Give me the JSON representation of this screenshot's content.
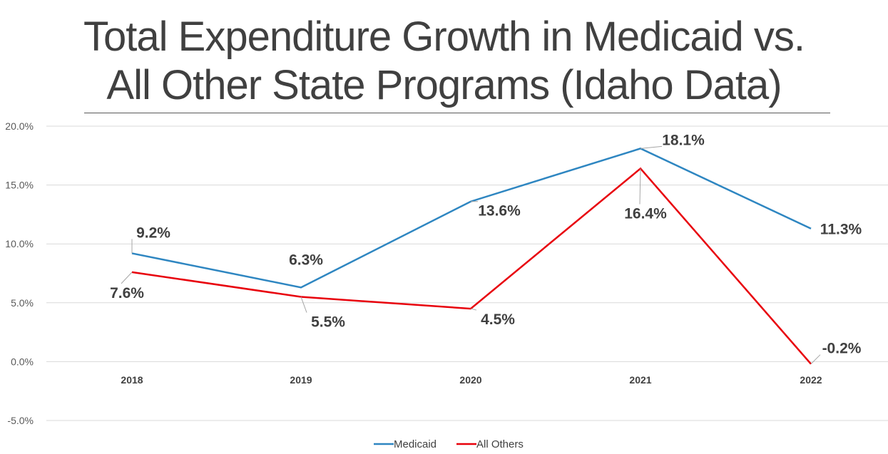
{
  "title_line1": "Total Expenditure Growth in Medicaid vs.",
  "title_line2": "All Other State Programs (Idaho Data)",
  "chart_data": {
    "type": "line",
    "title": "Total Expenditure Growth in Medicaid vs. All Other State Programs (Idaho Data)",
    "categories": [
      "2018",
      "2019",
      "2020",
      "2021",
      "2022"
    ],
    "series": [
      {
        "name": "Medicaid",
        "color": "#2E86C1",
        "values": [
          9.2,
          6.3,
          13.6,
          18.1,
          11.3
        ],
        "labels": [
          "9.2%",
          "6.3%",
          "13.6%",
          "18.1%",
          "11.3%"
        ]
      },
      {
        "name": "All Others",
        "color": "#E8000B",
        "values": [
          7.6,
          5.5,
          4.5,
          16.4,
          -0.2
        ],
        "labels": [
          "7.6%",
          "5.5%",
          "4.5%",
          "16.4%",
          "-0.2%"
        ]
      }
    ],
    "ylim": [
      -5,
      20
    ],
    "yticks": [
      20,
      15,
      10,
      5,
      0,
      -5
    ],
    "ytick_labels": [
      "20.0%",
      "15.0%",
      "10.0%",
      "5.0%",
      "0.0%",
      "-5.0%"
    ],
    "grid": true,
    "legend_position": "bottom"
  }
}
